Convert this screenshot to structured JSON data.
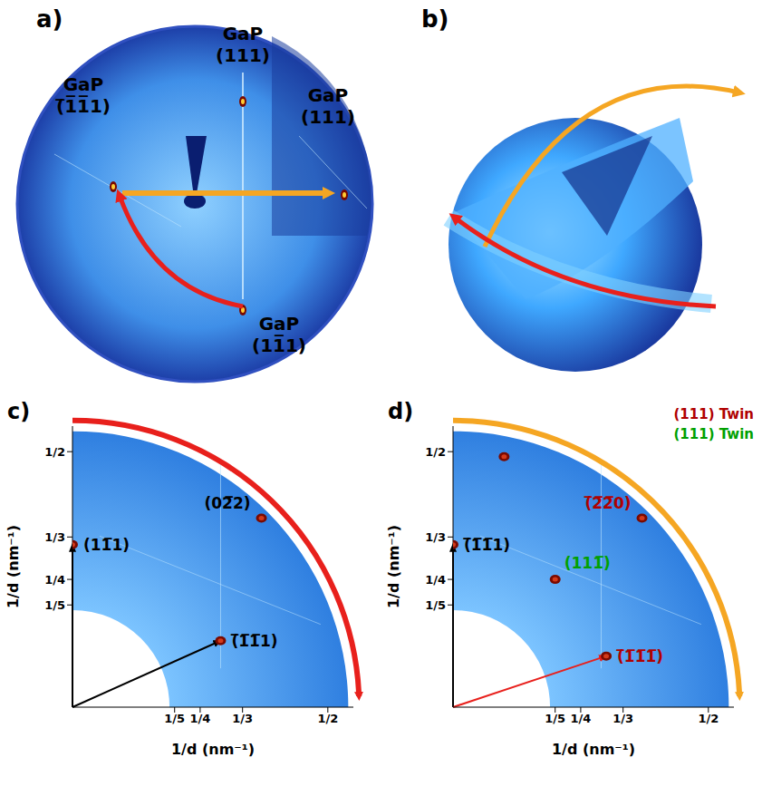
{
  "panel_letters": [
    "a)",
    "b)",
    "c)",
    "d)"
  ],
  "panel_a": {
    "labels": [
      "GaP (111)",
      "GaP (̅1̅1̅1)",
      "GaP (111)",
      "GaP (11̅1)"
    ]
  },
  "chart_data": [
    {
      "type": "scatter",
      "x_label": "1/d (nm⁻¹)",
      "y_label": "1/d (nm⁻¹)",
      "xlim": [
        0,
        0.55
      ],
      "ylim": [
        0,
        0.55
      ],
      "xticks": [
        {
          "value": 0.2,
          "label": "1/5"
        },
        {
          "value": 0.25,
          "label": "1/4"
        },
        {
          "value": 0.333,
          "label": "1/3"
        },
        {
          "value": 0.5,
          "label": "1/2"
        }
      ],
      "yticks": [
        {
          "value": 0.2,
          "label": "1/5"
        },
        {
          "value": 0.25,
          "label": "1/4"
        },
        {
          "value": 0.333,
          "label": "1/3"
        },
        {
          "value": 0.5,
          "label": "1/2"
        }
      ],
      "detector_range": [
        0.19,
        0.54
      ],
      "color": "#e8201c",
      "points": [
        {
          "x": 0,
          "y": 0.318,
          "label": "(11̅1)",
          "color": "#000000",
          "arrow_color": "#000000"
        },
        {
          "x": 0.29,
          "y": 0.13,
          "label": "(̅1̅1̅1)",
          "color": "#000000",
          "arrow_color": "#000000"
        },
        {
          "x": 0.37,
          "y": 0.37,
          "label": "(02̅2)",
          "color": "#000000"
        }
      ]
    },
    {
      "type": "scatter",
      "x_label": "1/d (nm⁻¹)",
      "y_label": "1/d (nm⁻¹)",
      "xlim": [
        0,
        0.55
      ],
      "ylim": [
        0,
        0.55
      ],
      "xticks": [
        {
          "value": 0.2,
          "label": "1/5"
        },
        {
          "value": 0.25,
          "label": "1/4"
        },
        {
          "value": 0.333,
          "label": "1/3"
        },
        {
          "value": 0.5,
          "label": "1/2"
        }
      ],
      "yticks": [
        {
          "value": 0.2,
          "label": "1/5"
        },
        {
          "value": 0.25,
          "label": "1/4"
        },
        {
          "value": 0.333,
          "label": "1/3"
        },
        {
          "value": 0.5,
          "label": "1/2"
        }
      ],
      "detector_range": [
        0.19,
        0.54
      ],
      "color": "#f5a623",
      "annotations": [
        {
          "text": "(111) Twin",
          "color": "#b00000"
        },
        {
          "text": "(111) Twin",
          "color": "#00a000"
        }
      ],
      "points": [
        {
          "x": 0,
          "y": 0.318,
          "label": "(̅1̅1̅1)",
          "color": "#000000",
          "arrow_color": "#000000"
        },
        {
          "x": 0.37,
          "y": 0.37,
          "label": "(̅2̅2̅0)",
          "color": "#b00000"
        },
        {
          "x": 0.2,
          "y": 0.25,
          "label": "(111̅)",
          "color": "#00a000"
        },
        {
          "x": 0.3,
          "y": 0.1,
          "label": "(̅1̅1̅1̅)",
          "color": "#b00000",
          "arrow_color": "#e8201c"
        },
        {
          "x": 0.1,
          "y": 0.49
        }
      ]
    }
  ]
}
